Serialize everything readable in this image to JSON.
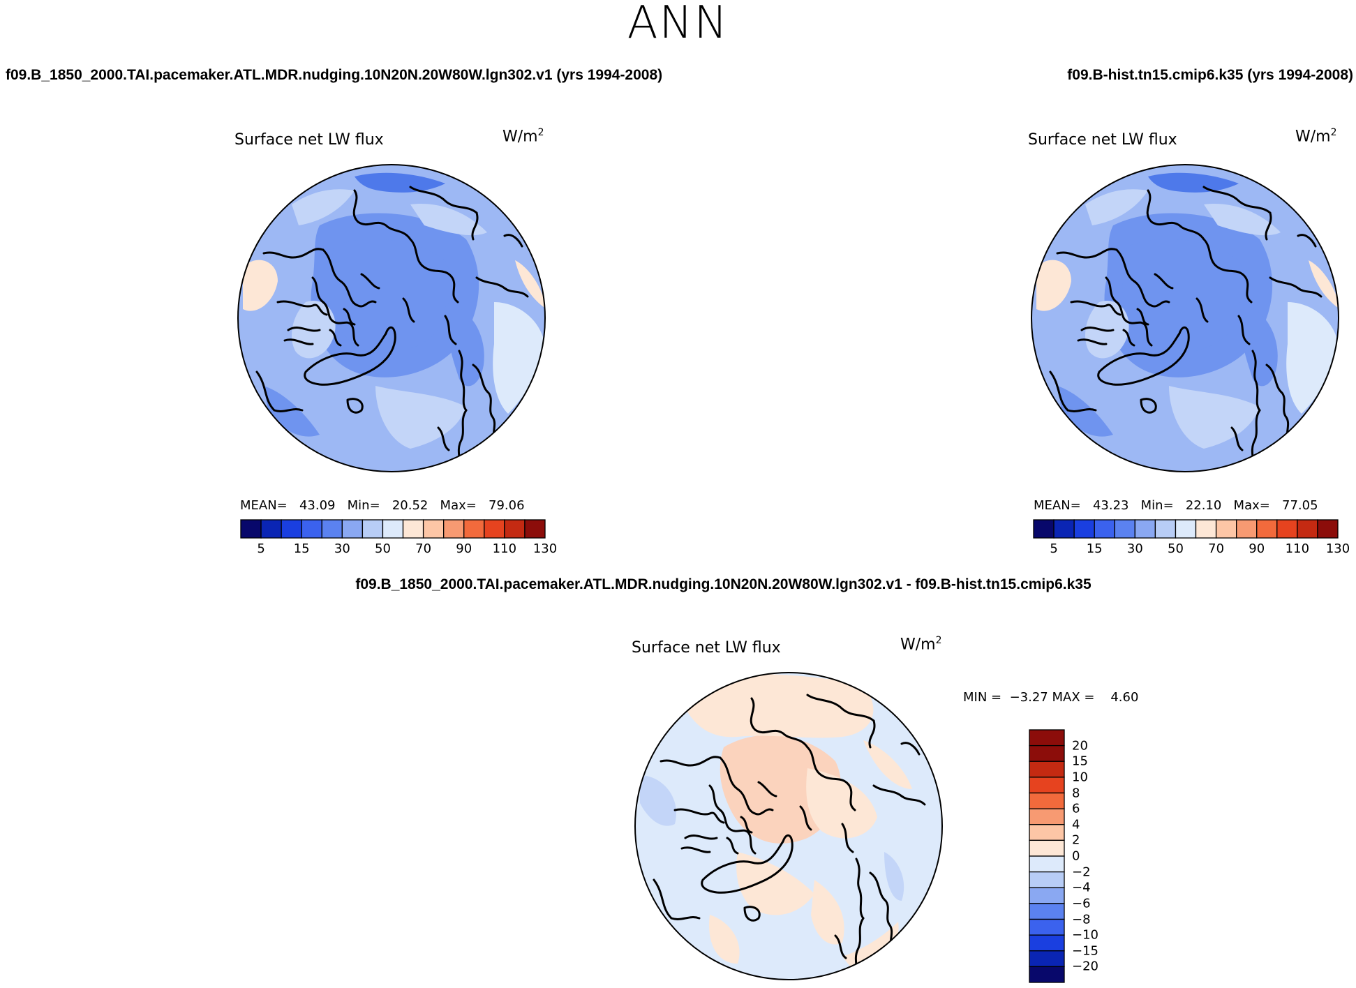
{
  "figure": {
    "title": "ANN"
  },
  "panels": [
    {
      "id": "case1",
      "case_title": "f09.B_1850_2000.TAI.pacemaker.ATL.MDR.nudging.10N20N.20W80W.lgn302.v1 (yrs 1994-2008)",
      "field_label": "Surface net LW flux",
      "units_base": "W/m",
      "units_exp": "2",
      "stats": {
        "mean_label": "MEAN=",
        "mean": "43.09",
        "min_label": "Min=",
        "min": "20.52",
        "max_label": "Max=",
        "max": "79.06"
      }
    },
    {
      "id": "case2",
      "case_title": "f09.B-hist.tn15.cmip6.k35 (yrs 1994-2008)",
      "field_label": "Surface net LW flux",
      "units_base": "W/m",
      "units_exp": "2",
      "stats": {
        "mean_label": "MEAN=",
        "mean": "43.23",
        "min_label": "Min=",
        "min": "22.10",
        "max_label": "Max=",
        "max": "77.05"
      }
    }
  ],
  "difference": {
    "title": "f09.B_1850_2000.TAI.pacemaker.ATL.MDR.nudging.10N20N.20W80W.lgn302.v1 - f09.B-hist.tn15.cmip6.k35",
    "field_label": "Surface net LW flux",
    "units_base": "W/m",
    "units_exp": "2",
    "stats": {
      "min_label": "MIN =",
      "min": "−3.27",
      "max_label": "MAX =",
      "max": "4.60"
    }
  },
  "colorbars": {
    "abs": {
      "colors": [
        "#08086b",
        "#0a25b4",
        "#1a3fe0",
        "#3b62ee",
        "#5b82f0",
        "#8aa8f2",
        "#b8cdf6",
        "#ddeafb",
        "#fde7d6",
        "#fdc6a6",
        "#f79a72",
        "#f26a3c",
        "#e6431f",
        "#c42a12",
        "#8c0d0a"
      ],
      "labels": [
        "5",
        "15",
        "30",
        "50",
        "70",
        "90",
        "110",
        "130"
      ]
    },
    "diff": {
      "colors": [
        "#8c0d0a",
        "#c42a12",
        "#e6431f",
        "#f26a3c",
        "#f79a72",
        "#fdc6a6",
        "#fde7d6",
        "#ddeafb",
        "#b8cdf6",
        "#8aa8f2",
        "#5b82f0",
        "#3b62ee",
        "#1a3fe0",
        "#0a25b4",
        "#08086b"
      ],
      "labels": [
        "20",
        "15",
        "10",
        "8",
        "6",
        "4",
        "2",
        "0",
        "−2",
        "−4",
        "−6",
        "−8",
        "−10",
        "−15",
        "−20"
      ]
    }
  },
  "map_colors": {
    "abs_base": "#9db8f4",
    "abs_dark": "#6f94ef",
    "abs_deep": "#4e79ea",
    "abs_light": "#c3d5f8",
    "abs_pale": "#ddeafb",
    "abs_warm": "#fde7d6",
    "diff_base": "#ddeafb",
    "diff_warm": "#fde7d6",
    "diff_warmer": "#fbd3bd",
    "diff_cool": "#c3d5f8",
    "coast": "#000000"
  }
}
